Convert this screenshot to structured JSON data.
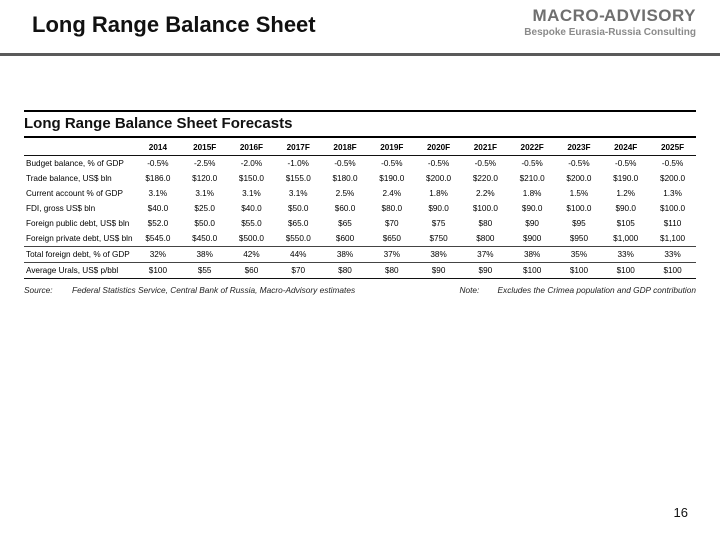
{
  "header": {
    "title": "Long Range Balance Sheet",
    "logo_line1_a": "MACRO",
    "logo_line1_dash": "-",
    "logo_line1_b": "ADVISORY",
    "logo_line2": "Bespoke Eurasia-Russia Consulting"
  },
  "table": {
    "title": "Long Range Balance Sheet Forecasts",
    "years": [
      "2014",
      "2015F",
      "2016F",
      "2017F",
      "2018F",
      "2019F",
      "2020F",
      "2021F",
      "2022F",
      "2023F",
      "2024F",
      "2025F"
    ],
    "rows": [
      {
        "label": "Budget balance, % of GDP",
        "cells": [
          "-0.5%",
          "-2.5%",
          "-2.0%",
          "-1.0%",
          "-0.5%",
          "-0.5%",
          "-0.5%",
          "-0.5%",
          "-0.5%",
          "-0.5%",
          "-0.5%",
          "-0.5%"
        ]
      },
      {
        "label": "Trade balance, US$ bln",
        "cells": [
          "$186.0",
          "$120.0",
          "$150.0",
          "$155.0",
          "$180.0",
          "$190.0",
          "$200.0",
          "$220.0",
          "$210.0",
          "$200.0",
          "$190.0",
          "$200.0"
        ]
      },
      {
        "label": "Current account % of GDP",
        "cells": [
          "3.1%",
          "3.1%",
          "3.1%",
          "3.1%",
          "2.5%",
          "2.4%",
          "1.8%",
          "2.2%",
          "1.8%",
          "1.5%",
          "1.2%",
          "1.3%"
        ]
      },
      {
        "label": "FDI, gross US$ bln",
        "cells": [
          "$40.0",
          "$25.0",
          "$40.0",
          "$50.0",
          "$60.0",
          "$80.0",
          "$90.0",
          "$100.0",
          "$90.0",
          "$100.0",
          "$90.0",
          "$100.0"
        ]
      },
      {
        "label": "Foreign public debt, US$ bln",
        "cells": [
          "$52.0",
          "$50.0",
          "$55.0",
          "$65.0",
          "$65",
          "$70",
          "$75",
          "$80",
          "$90",
          "$95",
          "$105",
          "$110"
        ]
      },
      {
        "label": "Foreign private debt, US$ bln",
        "cells": [
          "$545.0",
          "$450.0",
          "$500.0",
          "$550.0",
          "$600",
          "$650",
          "$750",
          "$800",
          "$900",
          "$950",
          "$1,000",
          "$1,100"
        ]
      },
      {
        "label": "Total foreign debt, % of GDP",
        "cells": [
          "32%",
          "38%",
          "42%",
          "44%",
          "38%",
          "37%",
          "38%",
          "37%",
          "38%",
          "35%",
          "33%",
          "33%"
        ],
        "sep_top": true
      },
      {
        "label": "Average Urals, US$ p/bbl",
        "cells": [
          "$100",
          "$55",
          "$60",
          "$70",
          "$80",
          "$80",
          "$90",
          "$90",
          "$100",
          "$100",
          "$100",
          "$100"
        ],
        "sep_top": true,
        "sep_bot": true
      }
    ],
    "source_label": "Source:",
    "source_text": "Federal Statistics Service, Central Bank of Russia, Macro-Advisory estimates",
    "note_label": "Note:",
    "note_text": "Excludes the Crimea population and GDP contribution"
  },
  "pagenum": "16",
  "colors": {
    "header_border": "#5a5a5a",
    "logo_gray": "#6f6f6f",
    "logo_sub_gray": "#8a8a8a",
    "rule": "#111111"
  }
}
